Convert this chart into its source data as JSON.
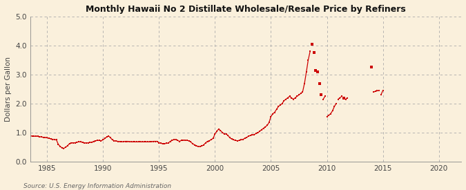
{
  "title": "Monthly Hawaii No 2 Distillate Wholesale/Resale Price by Refiners",
  "ylabel": "Dollars per Gallon",
  "source": "Source: U.S. Energy Information Administration",
  "background_color": "#faf0dc",
  "line_color": "#cc0000",
  "xlim": [
    1983.5,
    2022
  ],
  "ylim": [
    0.0,
    5.0
  ],
  "yticks": [
    0.0,
    1.0,
    2.0,
    3.0,
    4.0,
    5.0
  ],
  "xticks": [
    1985,
    1990,
    1995,
    2000,
    2005,
    2010,
    2015,
    2020
  ],
  "segments": [
    {
      "years": [
        1983.0,
        1983.17,
        1983.33,
        1983.5,
        1983.67,
        1983.83,
        1984.0,
        1984.17,
        1984.33,
        1984.5,
        1984.67,
        1984.83,
        1985.0,
        1985.17,
        1985.33,
        1985.5,
        1985.67,
        1985.83,
        1986.0,
        1986.17,
        1986.33,
        1986.5,
        1986.67,
        1986.83,
        1987.0,
        1987.17,
        1987.33,
        1987.5,
        1987.67,
        1987.83,
        1988.0,
        1988.17,
        1988.33,
        1988.5,
        1988.67,
        1988.83,
        1989.0,
        1989.17,
        1989.33,
        1989.5,
        1989.67,
        1989.83,
        1990.0,
        1990.17,
        1990.33,
        1990.5,
        1990.67,
        1990.83,
        1991.0,
        1991.17,
        1991.33,
        1991.5,
        1991.67,
        1991.83,
        1992.0,
        1992.17,
        1992.33,
        1992.5,
        1992.67,
        1992.83,
        1993.0,
        1993.17,
        1993.33,
        1993.5,
        1993.67,
        1993.83,
        1994.0,
        1994.17,
        1994.33,
        1994.5,
        1994.67,
        1994.83,
        1995.0,
        1995.17,
        1995.33,
        1995.5,
        1995.67,
        1995.83,
        1996.0,
        1996.17,
        1996.33,
        1996.5,
        1996.67,
        1996.83,
        1997.0,
        1997.17,
        1997.33,
        1997.5,
        1997.67,
        1997.83,
        1998.0,
        1998.17,
        1998.33,
        1998.5,
        1998.67,
        1998.83,
        1999.0,
        1999.17,
        1999.33,
        1999.5,
        1999.67,
        1999.83,
        2000.0,
        2000.17,
        2000.33,
        2000.5,
        2000.67,
        2000.83,
        2001.0,
        2001.17,
        2001.33,
        2001.5,
        2001.67,
        2001.83,
        2002.0,
        2002.17,
        2002.33,
        2002.5,
        2002.67,
        2002.83,
        2003.0,
        2003.17,
        2003.33,
        2003.5,
        2003.67,
        2003.83,
        2004.0,
        2004.17,
        2004.33,
        2004.5,
        2004.67,
        2004.83,
        2005.0,
        2005.17,
        2005.33,
        2005.5,
        2005.67,
        2005.83,
        2006.0,
        2006.17,
        2006.33,
        2006.5,
        2006.67,
        2006.83,
        2007.0,
        2007.17,
        2007.33,
        2007.5,
        2007.67,
        2007.83,
        2008.0,
        2008.17,
        2008.33,
        2008.5
      ],
      "prices": [
        0.92,
        0.9,
        0.88,
        0.89,
        0.88,
        0.87,
        0.88,
        0.87,
        0.86,
        0.85,
        0.84,
        0.83,
        0.82,
        0.8,
        0.79,
        0.77,
        0.76,
        0.75,
        0.6,
        0.52,
        0.48,
        0.46,
        0.5,
        0.55,
        0.62,
        0.65,
        0.65,
        0.65,
        0.67,
        0.68,
        0.68,
        0.66,
        0.65,
        0.64,
        0.65,
        0.66,
        0.67,
        0.7,
        0.72,
        0.73,
        0.73,
        0.72,
        0.75,
        0.8,
        0.85,
        0.88,
        0.82,
        0.75,
        0.72,
        0.71,
        0.7,
        0.69,
        0.68,
        0.69,
        0.7,
        0.7,
        0.69,
        0.68,
        0.68,
        0.68,
        0.68,
        0.68,
        0.68,
        0.68,
        0.68,
        0.68,
        0.68,
        0.68,
        0.69,
        0.7,
        0.7,
        0.7,
        0.65,
        0.63,
        0.62,
        0.62,
        0.63,
        0.64,
        0.7,
        0.73,
        0.76,
        0.76,
        0.73,
        0.7,
        0.73,
        0.74,
        0.74,
        0.73,
        0.72,
        0.68,
        0.62,
        0.58,
        0.55,
        0.52,
        0.52,
        0.54,
        0.58,
        0.65,
        0.7,
        0.72,
        0.76,
        0.8,
        0.95,
        1.05,
        1.12,
        1.07,
        1.0,
        0.96,
        0.95,
        0.9,
        0.82,
        0.78,
        0.75,
        0.73,
        0.72,
        0.73,
        0.75,
        0.77,
        0.8,
        0.83,
        0.88,
        0.9,
        0.92,
        0.93,
        0.97,
        0.99,
        1.05,
        1.1,
        1.15,
        1.2,
        1.25,
        1.35,
        1.55,
        1.65,
        1.7,
        1.8,
        1.9,
        1.95,
        2.0,
        2.1,
        2.15,
        2.2,
        2.25,
        2.2,
        2.15,
        2.2,
        2.25,
        2.3,
        2.35,
        2.4,
        2.7,
        3.1,
        3.5,
        3.8
      ]
    },
    {
      "years": [
        2008.67
      ],
      "prices": [
        4.05
      ]
    },
    {
      "years": [
        2008.83
      ],
      "prices": [
        3.75
      ]
    },
    {
      "years": [
        2009.0
      ],
      "prices": [
        3.15
      ]
    },
    {
      "years": [
        2009.17
      ],
      "prices": [
        3.1
      ]
    },
    {
      "years": [
        2009.33
      ],
      "prices": [
        2.7
      ]
    },
    {
      "years": [
        2009.5
      ],
      "prices": [
        2.3
      ]
    },
    {
      "years": [
        2009.67,
        2009.83
      ],
      "prices": [
        2.15,
        2.25
      ]
    },
    {
      "years": [
        2010.0,
        2010.17,
        2010.33,
        2010.5,
        2010.67,
        2010.83
      ],
      "prices": [
        1.55,
        1.6,
        1.65,
        1.75,
        1.9,
        2.0
      ]
    },
    {
      "years": [
        2011.0,
        2011.17,
        2011.33
      ],
      "prices": [
        2.15,
        2.2,
        2.25
      ]
    },
    {
      "years": [
        2011.5
      ],
      "prices": [
        2.2
      ]
    },
    {
      "years": [
        2011.67,
        2011.83
      ],
      "prices": [
        2.15,
        2.2
      ]
    },
    {
      "years": [
        2014.0
      ],
      "prices": [
        3.25
      ]
    },
    {
      "years": [
        2014.17,
        2014.33,
        2014.5,
        2014.67
      ],
      "prices": [
        2.4,
        2.42,
        2.44,
        2.45
      ]
    },
    {
      "years": [
        2014.83,
        2015.0
      ],
      "prices": [
        2.3,
        2.45
      ]
    }
  ]
}
